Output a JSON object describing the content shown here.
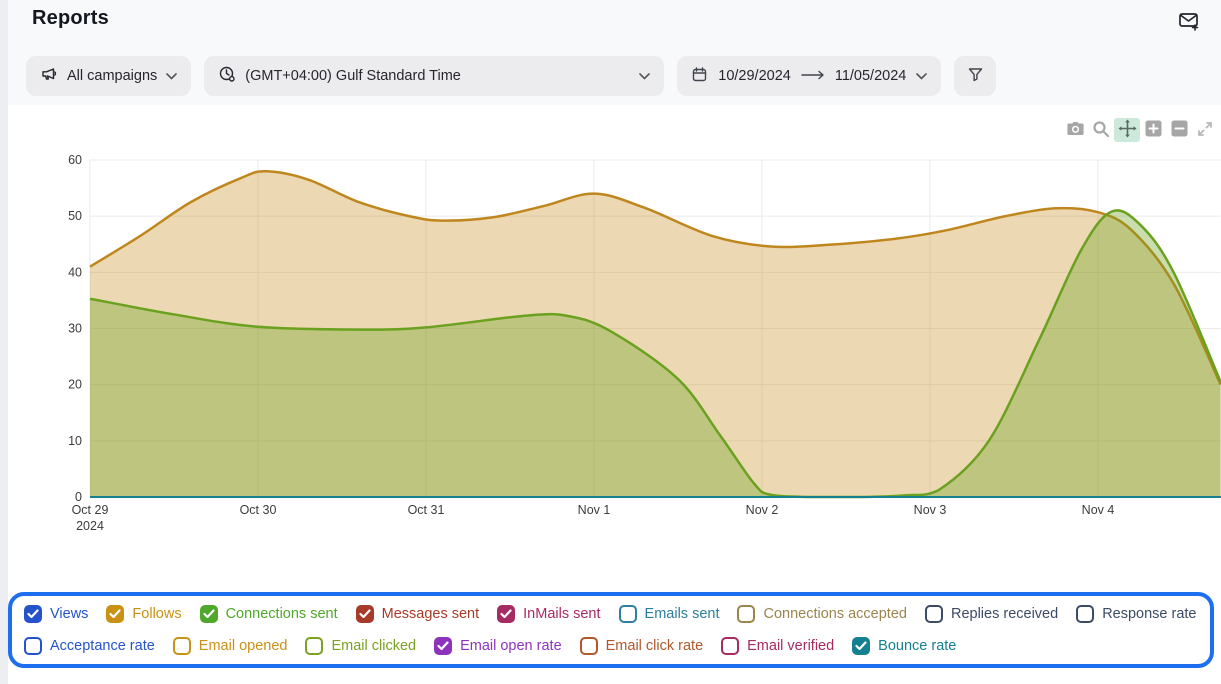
{
  "header": {
    "title": "Reports"
  },
  "filters": {
    "campaigns": {
      "label": "All campaigns"
    },
    "timezone": {
      "label": "(GMT+04:00) Gulf Standard Time"
    },
    "date_range": {
      "start": "10/29/2024",
      "end": "11/05/2024"
    }
  },
  "modebar": {
    "buttons": [
      "camera",
      "box-zoom",
      "pan",
      "zoom-in",
      "zoom-out",
      "autoscale"
    ],
    "active": "pan"
  },
  "chart_data": {
    "type": "area",
    "title": "",
    "xlabel": "",
    "ylabel": "",
    "ylim": [
      0,
      60
    ],
    "y_ticks": [
      0,
      10,
      20,
      30,
      40,
      50,
      60
    ],
    "x_ticks": [
      [
        "Oct 29",
        "2024"
      ],
      "Oct 30",
      "Oct 31",
      "Nov 1",
      "Nov 2",
      "Nov 3",
      "Nov 4"
    ],
    "x_range_days": [
      0,
      6.73
    ],
    "grid": true,
    "series": [
      {
        "name": "Follows",
        "color": "#c0861e",
        "fill": "rgba(198,141,27,0.33)",
        "points": [
          [
            0,
            41
          ],
          [
            0.3,
            46.5
          ],
          [
            0.6,
            52.5
          ],
          [
            0.9,
            56.8
          ],
          [
            1.05,
            58
          ],
          [
            1.3,
            56.5
          ],
          [
            1.6,
            52.5
          ],
          [
            1.9,
            50
          ],
          [
            2.1,
            49.2
          ],
          [
            2.4,
            49.8
          ],
          [
            2.7,
            51.8
          ],
          [
            3,
            54
          ],
          [
            3.3,
            51.5
          ],
          [
            3.7,
            46.5
          ],
          [
            4.05,
            44.6
          ],
          [
            4.4,
            44.9
          ],
          [
            4.8,
            46
          ],
          [
            5.1,
            47.5
          ],
          [
            5.45,
            50
          ],
          [
            5.75,
            51.4
          ],
          [
            6,
            50.7
          ],
          [
            6.2,
            47.5
          ],
          [
            6.45,
            38
          ],
          [
            6.73,
            20
          ]
        ]
      },
      {
        "name": "Connections sent",
        "color": "#6aa11f",
        "fill": "rgba(106,160,31,0.36)",
        "points": [
          [
            0,
            35.3
          ],
          [
            0.5,
            32.5
          ],
          [
            1,
            30.3
          ],
          [
            1.6,
            29.8
          ],
          [
            2,
            30.2
          ],
          [
            2.6,
            32.3
          ],
          [
            2.85,
            32.2
          ],
          [
            3.1,
            29.5
          ],
          [
            3.5,
            21
          ],
          [
            3.75,
            11
          ],
          [
            3.95,
            2.5
          ],
          [
            4.05,
            0.4
          ],
          [
            4.3,
            0
          ],
          [
            4.6,
            0
          ],
          [
            4.85,
            0.3
          ],
          [
            5.05,
            1.2
          ],
          [
            5.35,
            10
          ],
          [
            5.65,
            28
          ],
          [
            5.9,
            44
          ],
          [
            6.08,
            50.8
          ],
          [
            6.25,
            48.5
          ],
          [
            6.45,
            40
          ],
          [
            6.73,
            20.5
          ]
        ]
      },
      {
        "name": "Views",
        "color": "#2553cb",
        "points": [
          [
            0,
            0
          ],
          [
            6.73,
            0
          ]
        ]
      },
      {
        "name": "Messages sent",
        "color": "#a83a28",
        "points": [
          [
            0,
            0
          ],
          [
            6.73,
            0
          ]
        ]
      },
      {
        "name": "InMails sent",
        "color": "#a52b62",
        "points": [
          [
            0,
            0
          ],
          [
            6.73,
            0
          ]
        ]
      },
      {
        "name": "Email open rate",
        "color": "#8d33bb",
        "points": [
          [
            0,
            0
          ],
          [
            6.73,
            0
          ]
        ]
      },
      {
        "name": "Bounce rate",
        "color": "#15808f",
        "points": [
          [
            0,
            0
          ],
          [
            6.73,
            0
          ]
        ]
      }
    ]
  },
  "legend": {
    "items": [
      {
        "label": "Views",
        "color": "#2553cb",
        "checked": true
      },
      {
        "label": "Follows",
        "color": "#ca9215",
        "checked": true
      },
      {
        "label": "Connections sent",
        "color": "#4fa82b",
        "checked": true
      },
      {
        "label": "Messages sent",
        "color": "#a83a28",
        "checked": true
      },
      {
        "label": "InMails sent",
        "color": "#a52b62",
        "checked": true
      },
      {
        "label": "Emails sent",
        "color": "#2d7f9d",
        "checked": false
      },
      {
        "label": "Connections accepted",
        "color": "#9a854e",
        "checked": false
      },
      {
        "label": "Replies received",
        "color": "#3c4b66",
        "checked": false
      },
      {
        "label": "Response rate",
        "color": "#3c4b66",
        "checked": false
      },
      {
        "label": "Acceptance rate",
        "color": "#2553cb",
        "checked": false
      },
      {
        "label": "Email opened",
        "color": "#ca9215",
        "checked": false
      },
      {
        "label": "Email clicked",
        "color": "#7ba122",
        "checked": false
      },
      {
        "label": "Email open rate",
        "color": "#8d33bb",
        "checked": true
      },
      {
        "label": "Email click rate",
        "color": "#b2582b",
        "checked": false
      },
      {
        "label": "Email verified",
        "color": "#a52b62",
        "checked": false
      },
      {
        "label": "Bounce rate",
        "color": "#15808f",
        "checked": true
      }
    ]
  }
}
